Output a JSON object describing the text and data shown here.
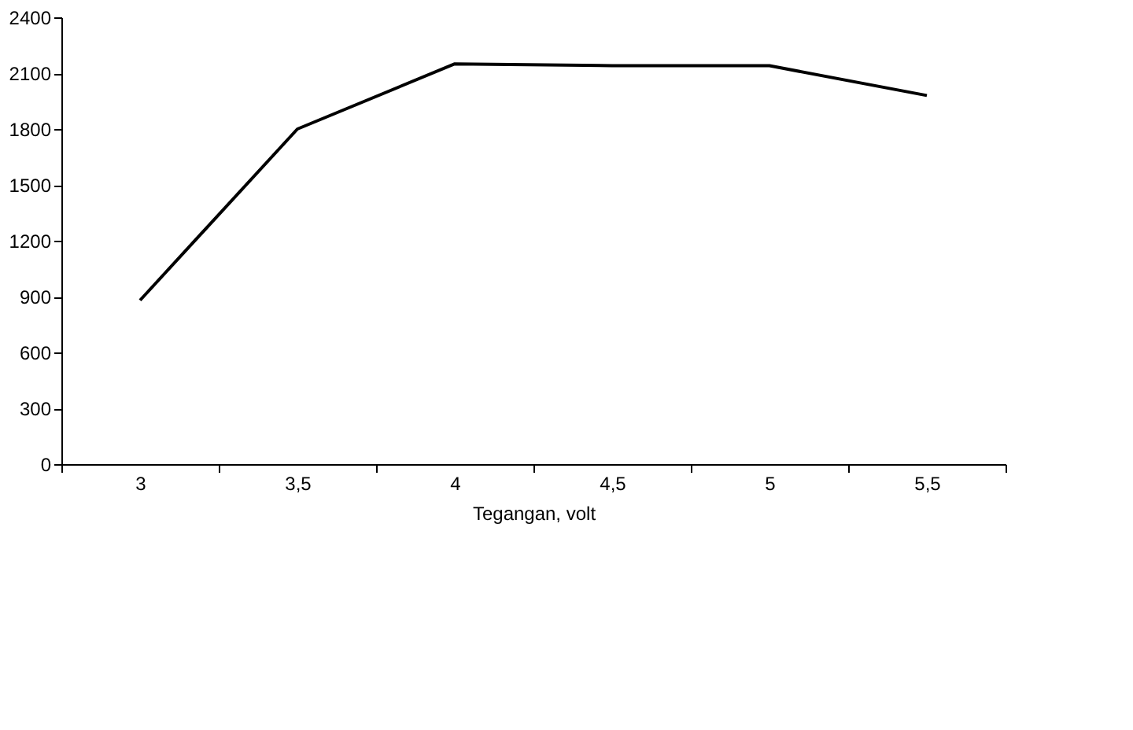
{
  "chart_data": {
    "type": "line",
    "xlabel": "Tegangan, volt",
    "categories": [
      "3",
      "3,5",
      "4",
      "4,5",
      "5",
      "5,5"
    ],
    "series": [
      {
        "color": "#000000",
        "values": [
          880,
          1800,
          2150,
          2140,
          2140,
          1980
        ]
      }
    ],
    "ylim": [
      0,
      2400
    ],
    "yticks": [
      0,
      300,
      600,
      900,
      1200,
      1500,
      1800,
      2100,
      2400
    ],
    "grid": false,
    "legend": false,
    "marker": "none",
    "line_style": "solid"
  }
}
